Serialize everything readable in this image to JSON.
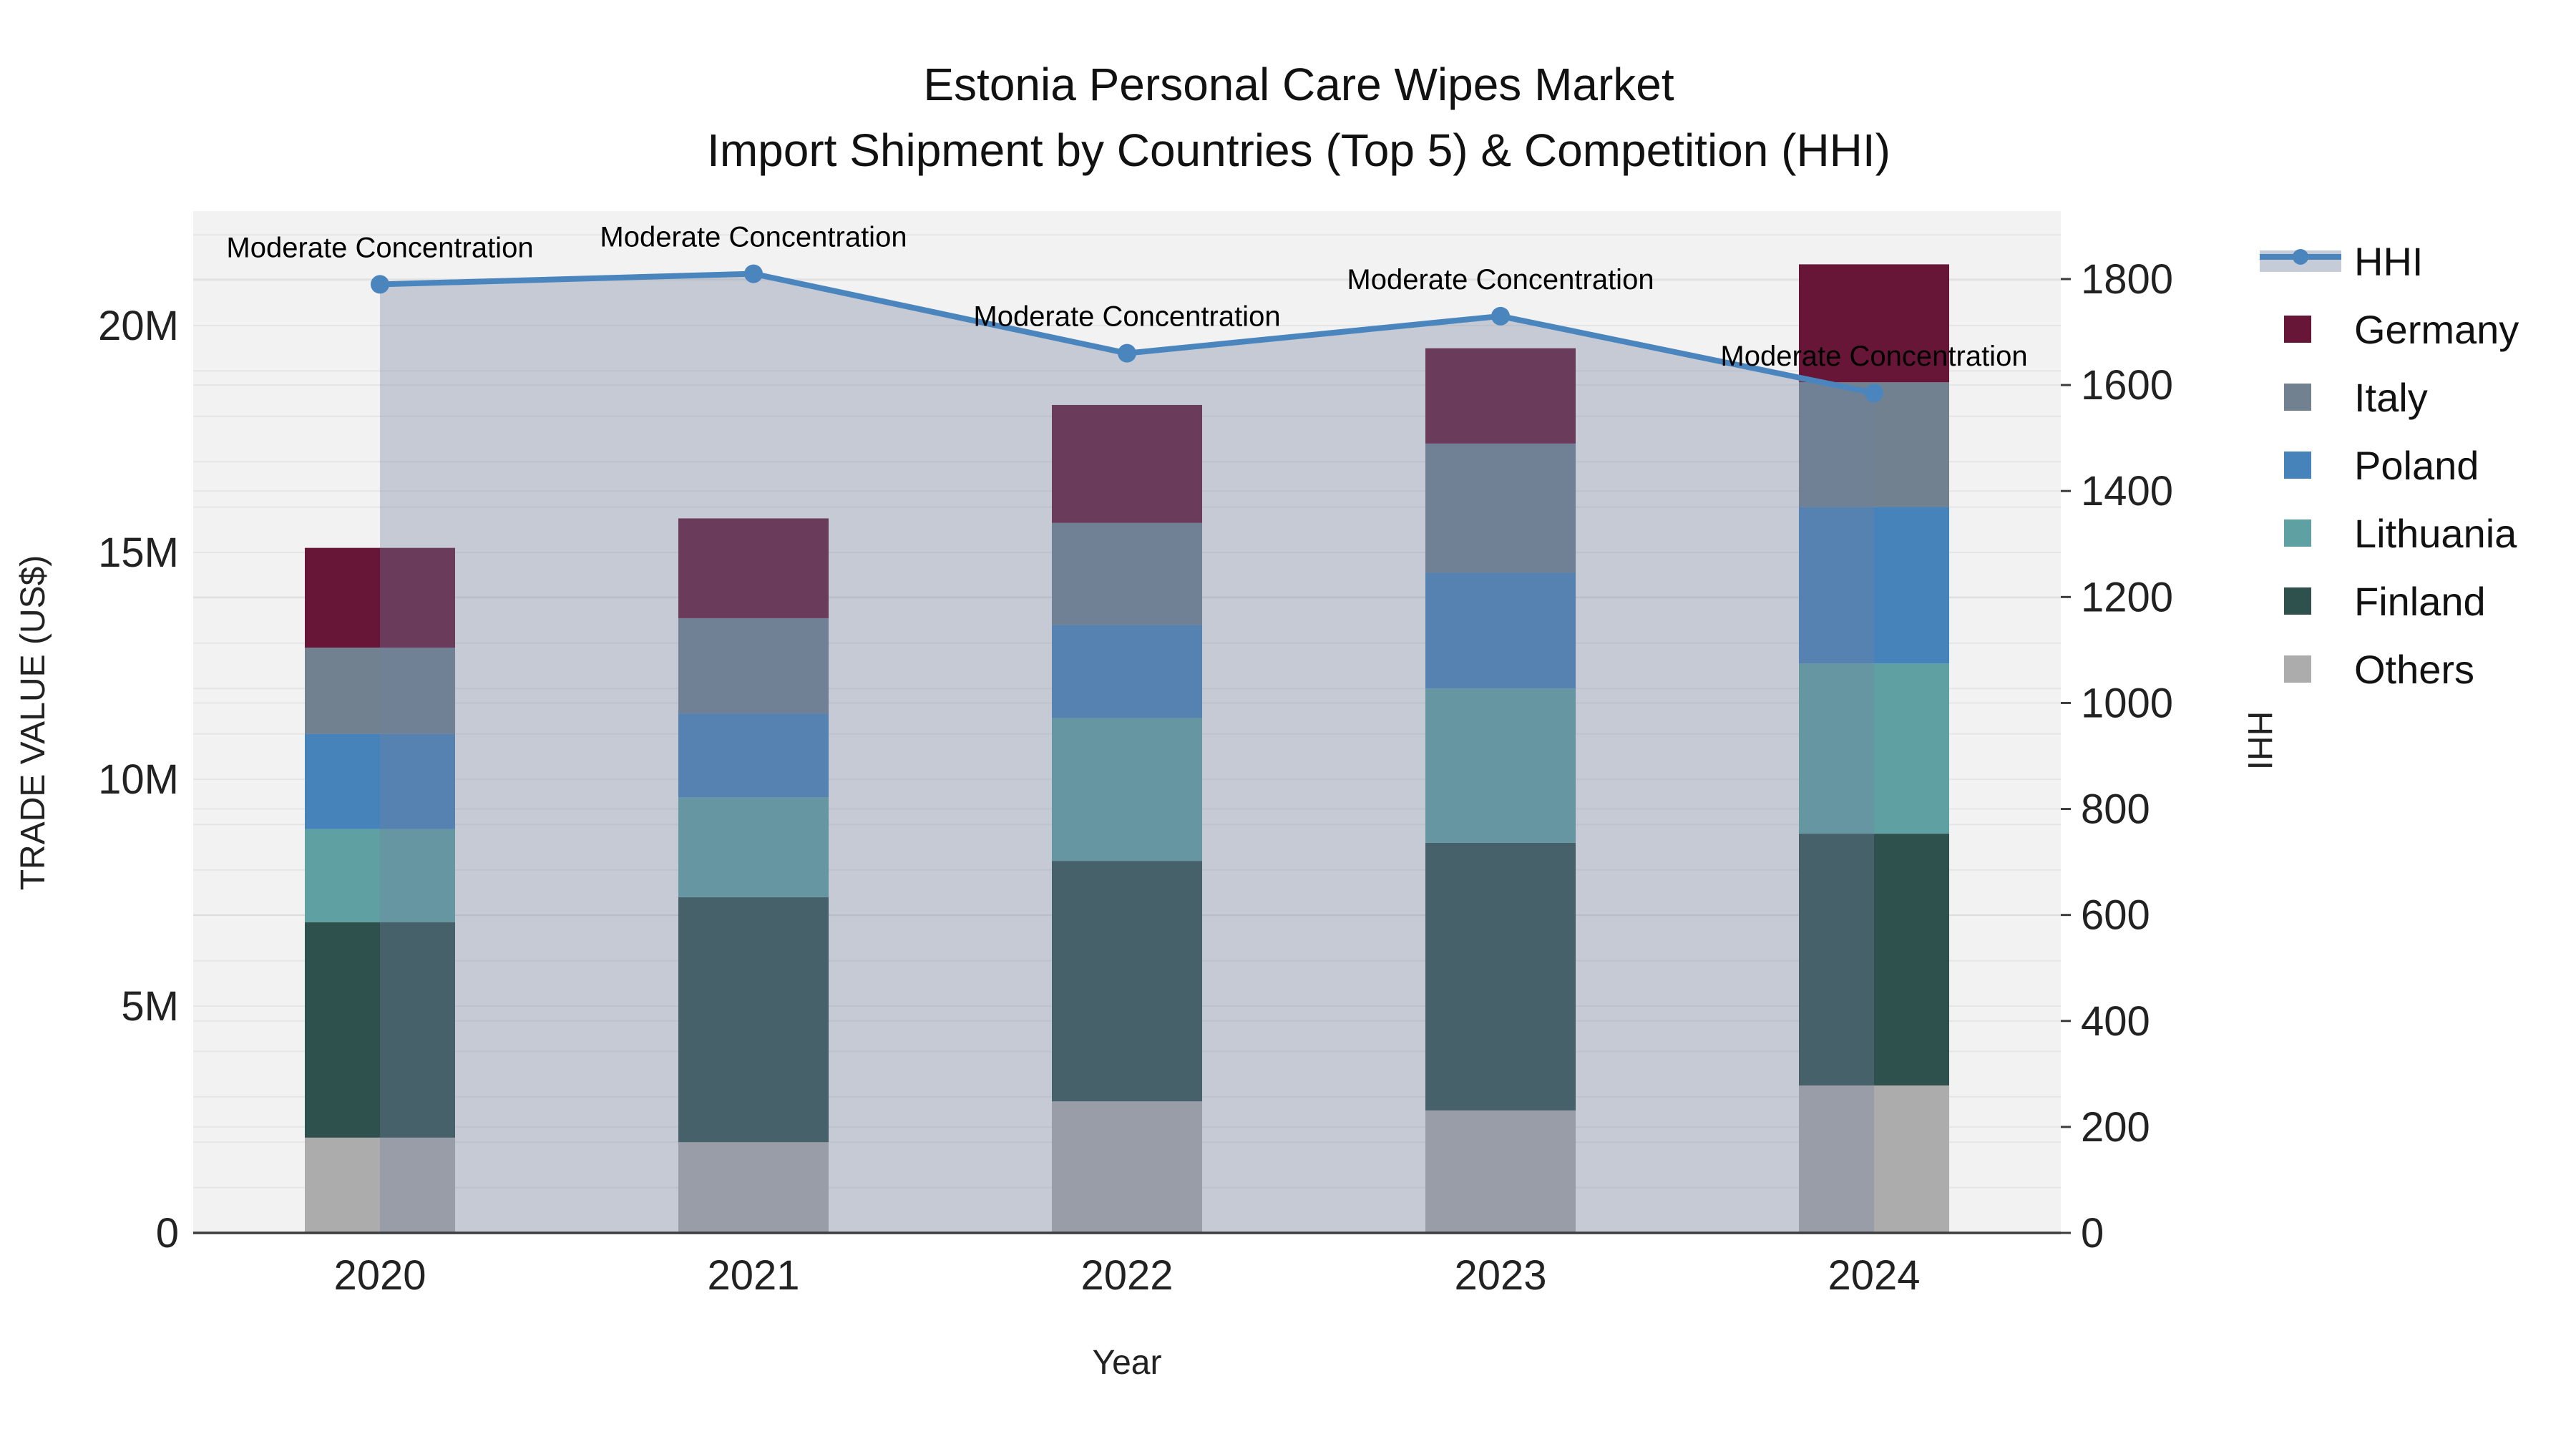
{
  "title": {
    "line1": "Estonia Personal Care Wipes Market",
    "line2": "Import Shipment by Countries (Top 5) & Competition (HHI)"
  },
  "axes": {
    "left": {
      "title": "TRADE VALUE (US$)",
      "tick_labels": [
        "0",
        "5M",
        "10M",
        "15M",
        "20M"
      ],
      "tick_values": [
        0,
        5,
        10,
        15,
        20
      ],
      "range": [
        0,
        22.5
      ]
    },
    "right": {
      "title": "HHI",
      "tick_labels": [
        "0",
        "200",
        "400",
        "600",
        "800",
        "1000",
        "1200",
        "1400",
        "1600",
        "1800"
      ],
      "tick_values": [
        0,
        200,
        400,
        600,
        800,
        1000,
        1200,
        1400,
        1600,
        1800
      ],
      "range": [
        0,
        1930
      ]
    },
    "x": {
      "title": "Year",
      "tick_labels": [
        "2020",
        "2021",
        "2022",
        "2023",
        "2024"
      ]
    }
  },
  "legend": {
    "items": [
      "HHI",
      "Germany",
      "Italy",
      "Poland",
      "Lithuania",
      "Finland",
      "Others"
    ]
  },
  "colors": {
    "plot_background": "#f2f2f2",
    "page_background": "#ffffff",
    "axis_line": "#3c3c3c",
    "gridline": "rgba(0,0,0,0.05)",
    "hhi_line": "#4A86BD",
    "hhi_area": "rgba(115,130,160,0.35)",
    "hhi_legend_band": "#c6ccd7",
    "germany": "#681638",
    "italy": "#71818F",
    "poland": "#4583BA",
    "lithuania": "#5FA1A3",
    "finland": "#2F514E",
    "others": "#ACACAC"
  },
  "chart_data": {
    "type": "bar",
    "subtype": "stacked-bars-with-line",
    "categories": [
      "2020",
      "2021",
      "2022",
      "2023",
      "2024"
    ],
    "values_unit": "US$ millions (left axis), HHI index (right axis)",
    "series": [
      {
        "name": "Germany",
        "axis": "left",
        "color_key": "germany",
        "values": [
          2.2,
          2.2,
          2.6,
          2.1,
          2.6
        ]
      },
      {
        "name": "Italy",
        "axis": "left",
        "color_key": "italy",
        "values": [
          1.9,
          2.1,
          2.25,
          2.85,
          2.75
        ]
      },
      {
        "name": "Poland",
        "axis": "left",
        "color_key": "poland",
        "values": [
          2.1,
          1.85,
          2.05,
          2.55,
          3.45
        ]
      },
      {
        "name": "Lithuania",
        "axis": "left",
        "color_key": "lithuania",
        "values": [
          2.05,
          2.2,
          3.15,
          3.4,
          3.75
        ]
      },
      {
        "name": "Finland",
        "axis": "left",
        "color_key": "finland",
        "values": [
          4.75,
          5.4,
          5.3,
          5.9,
          5.55
        ]
      },
      {
        "name": "Others",
        "axis": "left",
        "color_key": "others",
        "values": [
          2.1,
          2.0,
          2.9,
          2.7,
          3.25
        ]
      }
    ],
    "stack_order_bottom_to_top": [
      "Others",
      "Finland",
      "Lithuania",
      "Poland",
      "Italy",
      "Germany"
    ],
    "line_series": {
      "name": "HHI",
      "axis": "right",
      "color_key": "hhi_line",
      "area_fill_key": "hhi_area",
      "values": [
        1790,
        1810,
        1660,
        1730,
        1585
      ]
    },
    "annotations": [
      {
        "category": "2020",
        "text": "Moderate Concentration"
      },
      {
        "category": "2021",
        "text": "Moderate Concentration"
      },
      {
        "category": "2022",
        "text": "Moderate Concentration"
      },
      {
        "category": "2023",
        "text": "Moderate Concentration"
      },
      {
        "category": "2024",
        "text": "Moderate Concentration"
      }
    ],
    "layout_hints": {
      "grid": "faint horizontal",
      "legend_position": "right",
      "bars_total": [
        15.1,
        15.75,
        18.25,
        19.5,
        21.35
      ]
    }
  }
}
